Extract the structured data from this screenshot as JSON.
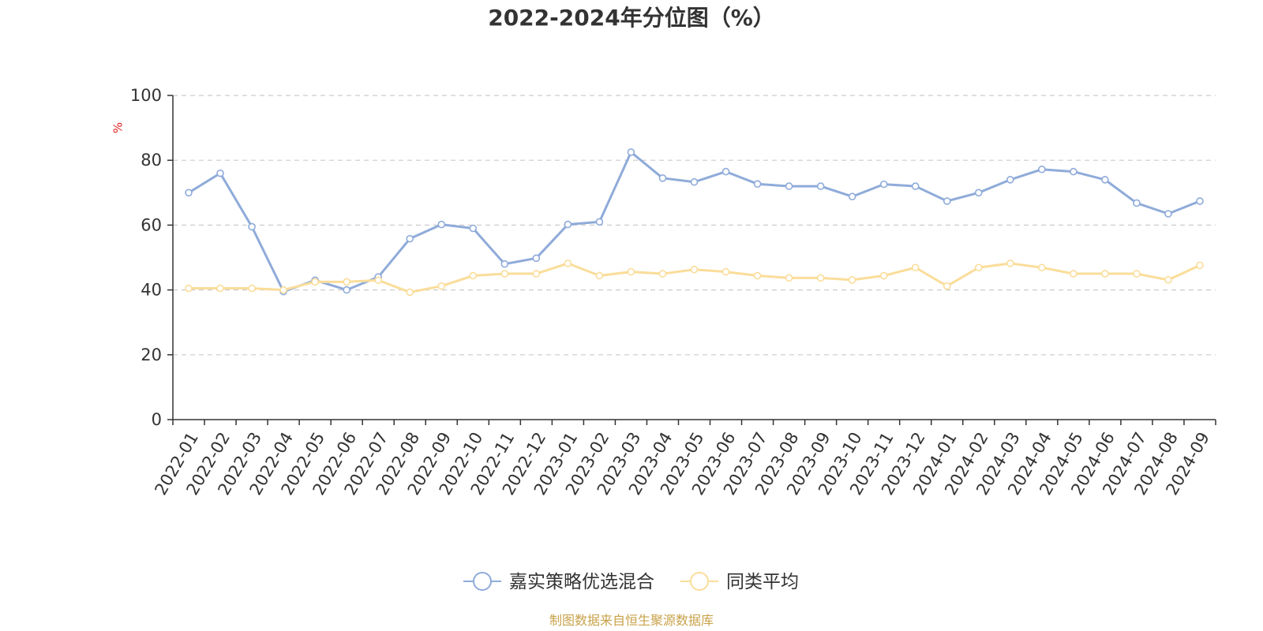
{
  "chart_data": {
    "type": "line",
    "title": "2022-2024年分位图（%）",
    "ylabel": "%",
    "ylim": [
      0,
      100
    ],
    "yticks": [
      "0",
      "20",
      "40",
      "60",
      "80",
      "100"
    ],
    "grid": true,
    "legend_position": "bottom",
    "categories": [
      "2022-01",
      "2022-02",
      "2022-03",
      "2022-04",
      "2022-05",
      "2022-06",
      "2022-07",
      "2022-08",
      "2022-09",
      "2022-10",
      "2022-11",
      "2022-12",
      "2023-01",
      "2023-02",
      "2023-03",
      "2023-04",
      "2023-05",
      "2023-06",
      "2023-07",
      "2023-08",
      "2023-09",
      "2023-10",
      "2023-11",
      "2023-12",
      "2024-01",
      "2024-02",
      "2024-03",
      "2024-04",
      "2024-05",
      "2024-06",
      "2024-07",
      "2024-08",
      "2024-09"
    ],
    "series": [
      {
        "name": "嘉实策略优选混合",
        "color": "#8fabd9",
        "values": [
          70,
          76,
          59.5,
          39.5,
          43,
          40,
          44,
          55.8,
          60.2,
          59,
          48,
          49.8,
          60.2,
          61,
          82.5,
          74.5,
          73.3,
          76.5,
          72.7,
          72,
          72,
          68.8,
          72.6,
          72,
          67.4,
          70,
          74,
          77.2,
          76.5,
          74,
          66.8,
          63.5,
          67.4
        ]
      },
      {
        "name": "同类平均",
        "color": "#fadd9a",
        "values": [
          40.5,
          40.5,
          40.5,
          40,
          42.5,
          42.5,
          43,
          39.3,
          41.2,
          44.4,
          45,
          45,
          48.2,
          44.4,
          45.6,
          45,
          46.3,
          45.6,
          44.4,
          43.7,
          43.7,
          43.1,
          44.4,
          46.9,
          41.2,
          46.9,
          48.2,
          46.9,
          45,
          45,
          45,
          43.1,
          47.6
        ]
      }
    ],
    "source": "制图数据来自恒生聚源数据库"
  }
}
